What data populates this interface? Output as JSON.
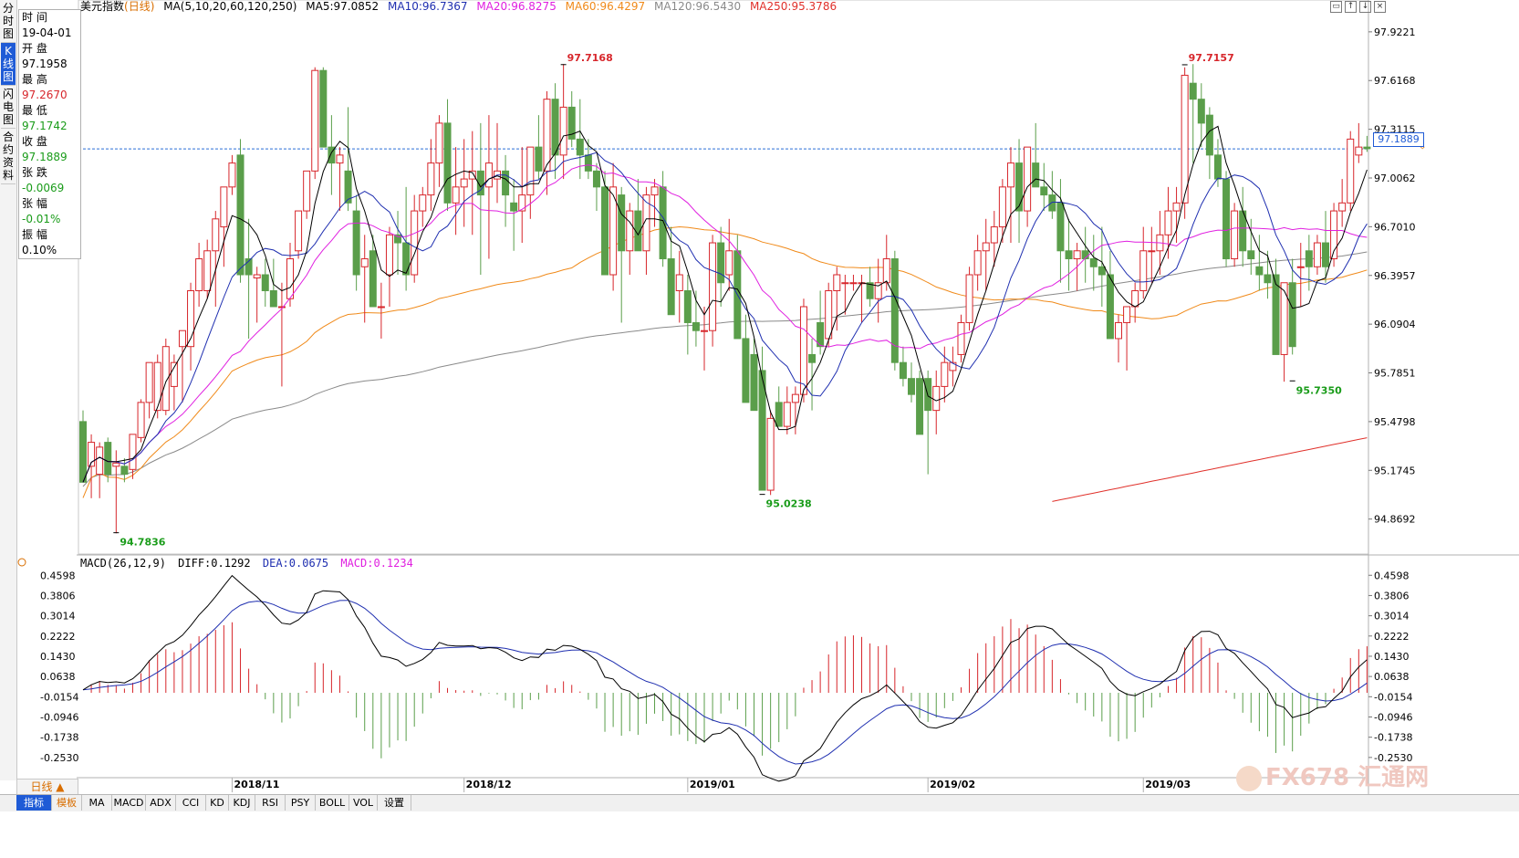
{
  "sidebar": {
    "tabs": [
      {
        "label": "分时图",
        "active": false
      },
      {
        "label": "K线图",
        "active": true
      },
      {
        "label": "闪电图",
        "active": false
      },
      {
        "label": "合约资料",
        "active": false
      }
    ]
  },
  "info_panel": {
    "time_label": "时 间",
    "time_value": "19-04-01",
    "open_label": "开 盘",
    "open_value": "97.1958",
    "high_label": "最 高",
    "high_value": "97.2670",
    "low_label": "最 低",
    "low_value": "97.1742",
    "close_label": "收 盘",
    "close_value": "97.1889",
    "change_label": "张 跌",
    "change_value": "-0.0069",
    "change_pct_label": "张 幅",
    "change_pct_value": "-0.01%",
    "amplitude_label": "振 幅",
    "amplitude_value": "0.10%"
  },
  "header": {
    "instrument": "美元指数",
    "period": "(日线)",
    "ma_params": "MA(5,10,20,60,120,250)",
    "ma5": "MA5:97.0852",
    "ma10": "MA10:96.7367",
    "ma20": "MA20:96.8275",
    "ma60": "MA60:96.4297",
    "ma120": "MA120:96.5430",
    "ma250": "MA250:95.3786"
  },
  "macd_header": {
    "params": "MACD(26,12,9)",
    "diff": "DIFF:0.1292",
    "dea": "DEA:0.0675",
    "macd": "MACD:0.1234"
  },
  "current_price_tag": "97.1889",
  "period_button": "日线 ▲",
  "bottom_tabs": [
    "指标",
    "模板",
    "MA",
    "MACD",
    "ADX",
    "CCI",
    "KD",
    "KDJ",
    "RSI",
    "PSY",
    "BOLL",
    "VOL",
    "设置"
  ],
  "watermark": "FX678 汇通网",
  "colors": {
    "up": "#d7262b",
    "down": "#5a9e4a",
    "ma5": "#000000",
    "ma10": "#1f2fb0",
    "ma20": "#e020e0",
    "ma60": "#f08a1a",
    "ma120": "#8a8a8a",
    "ma250": "#e0302a",
    "diff": "#000000",
    "dea": "#1f2fb0",
    "dashed_price": "#2a6fd6"
  },
  "chart_data": [
    {
      "type": "candlestick",
      "title": "美元指数(日线)",
      "y_ticks": [
        "97.9221",
        "97.6168",
        "97.3115",
        "97.0062",
        "96.7010",
        "96.3957",
        "96.0904",
        "95.7851",
        "95.4798",
        "95.1745",
        "94.8692"
      ],
      "ylim": [
        94.65,
        98.03
      ],
      "x_ticks": [
        "2018/11",
        "2018/12",
        "2019/01",
        "2019/02",
        "2019/03"
      ],
      "x_tick_index": [
        18,
        46,
        73,
        102,
        128
      ],
      "annotations": [
        {
          "index": 4,
          "value": "94.7836",
          "price": 94.7836
        },
        {
          "index": 58,
          "value": "97.7168",
          "price": 97.7168
        },
        {
          "index": 82,
          "value": "95.0238",
          "price": 95.0238
        },
        {
          "index": 133,
          "value": "97.7157",
          "price": 97.7157
        },
        {
          "index": 146,
          "value": "95.7350",
          "price": 95.735
        }
      ],
      "current_price_line": 97.1889,
      "candles_ohlc": [
        [
          95.48,
          95.55,
          95.1,
          95.1
        ],
        [
          95.2,
          95.4,
          95.0,
          95.35
        ],
        [
          95.15,
          95.35,
          95.0,
          95.32
        ],
        [
          95.35,
          95.38,
          95.1,
          95.15
        ],
        [
          95.2,
          95.3,
          94.78,
          95.22
        ],
        [
          95.2,
          95.25,
          95.1,
          95.15
        ],
        [
          95.18,
          95.4,
          95.12,
          95.4
        ],
        [
          95.38,
          95.62,
          95.35,
          95.6
        ],
        [
          95.6,
          95.85,
          95.5,
          95.85
        ],
        [
          95.55,
          95.9,
          95.5,
          95.85
        ],
        [
          95.55,
          96.0,
          95.52,
          95.95
        ],
        [
          95.7,
          95.9,
          95.55,
          95.85
        ],
        [
          95.95,
          96.05,
          95.6,
          96.05
        ],
        [
          95.95,
          96.35,
          95.8,
          96.3
        ],
        [
          96.3,
          96.6,
          96.2,
          96.5
        ],
        [
          96.3,
          96.62,
          96.25,
          96.55
        ],
        [
          96.55,
          96.8,
          96.2,
          96.75
        ],
        [
          96.7,
          96.95,
          96.45,
          96.95
        ],
        [
          96.95,
          97.15,
          96.9,
          97.1
        ],
        [
          97.15,
          97.25,
          96.35,
          96.4
        ],
        [
          96.5,
          96.75,
          96.0,
          96.4
        ],
        [
          96.38,
          96.45,
          96.1,
          96.4
        ],
        [
          96.4,
          96.5,
          96.2,
          96.3
        ],
        [
          96.3,
          96.5,
          96.2,
          96.2
        ],
        [
          96.2,
          96.35,
          95.7,
          96.2
        ],
        [
          96.25,
          96.6,
          96.2,
          96.5
        ],
        [
          96.55,
          96.8,
          96.5,
          96.8
        ],
        [
          96.8,
          97.05,
          96.75,
          97.05
        ],
        [
          97.05,
          97.7,
          97.0,
          97.68
        ],
        [
          97.68,
          97.7,
          97.2,
          97.2
        ],
        [
          97.2,
          97.4,
          96.9,
          97.1
        ],
        [
          97.1,
          97.2,
          96.8,
          97.15
        ],
        [
          97.05,
          97.45,
          96.8,
          96.85
        ],
        [
          96.8,
          96.9,
          96.3,
          96.4
        ],
        [
          96.45,
          96.65,
          96.1,
          96.5
        ],
        [
          96.55,
          96.65,
          96.2,
          96.2
        ],
        [
          96.2,
          96.35,
          96.0,
          96.2
        ],
        [
          96.4,
          96.7,
          96.2,
          96.65
        ],
        [
          96.65,
          96.8,
          96.4,
          96.6
        ],
        [
          96.6,
          96.95,
          96.3,
          96.4
        ],
        [
          96.4,
          96.9,
          96.35,
          96.8
        ],
        [
          96.8,
          96.95,
          96.7,
          96.9
        ],
        [
          96.9,
          97.25,
          96.8,
          97.1
        ],
        [
          97.1,
          97.4,
          96.95,
          97.35
        ],
        [
          97.35,
          97.5,
          96.8,
          96.85
        ],
        [
          96.85,
          97.2,
          96.65,
          96.95
        ],
        [
          96.95,
          97.25,
          96.7,
          97.0
        ],
        [
          97.0,
          97.3,
          96.65,
          97.05
        ],
        [
          97.05,
          97.35,
          96.4,
          96.9
        ],
        [
          96.95,
          97.4,
          96.5,
          97.1
        ],
        [
          97.0,
          97.35,
          96.85,
          97.05
        ],
        [
          97.05,
          97.15,
          96.7,
          96.9
        ],
        [
          96.85,
          97.0,
          96.55,
          96.8
        ],
        [
          96.8,
          97.2,
          96.6,
          96.9
        ],
        [
          96.9,
          97.2,
          96.75,
          97.2
        ],
        [
          97.2,
          97.4,
          97.0,
          97.05
        ],
        [
          97.05,
          97.55,
          96.9,
          97.5
        ],
        [
          97.5,
          97.6,
          97.0,
          97.15
        ],
        [
          97.15,
          97.72,
          97.0,
          97.45
        ],
        [
          97.45,
          97.55,
          97.2,
          97.25
        ],
        [
          97.25,
          97.5,
          97.0,
          97.15
        ],
        [
          97.15,
          97.25,
          97.0,
          97.05
        ],
        [
          97.05,
          97.1,
          96.8,
          96.95
        ],
        [
          96.95,
          97.05,
          96.45,
          96.4
        ],
        [
          96.4,
          97.1,
          96.3,
          96.95
        ],
        [
          96.9,
          96.95,
          96.1,
          96.55
        ],
        [
          96.55,
          96.85,
          96.4,
          96.8
        ],
        [
          96.8,
          97.0,
          96.55,
          96.55
        ],
        [
          96.55,
          96.95,
          96.4,
          96.9
        ],
        [
          96.9,
          97.0,
          96.7,
          96.95
        ],
        [
          96.95,
          97.05,
          96.45,
          96.5
        ],
        [
          96.5,
          96.7,
          96.15,
          96.15
        ],
        [
          96.3,
          96.55,
          96.1,
          96.4
        ],
        [
          96.3,
          96.4,
          95.9,
          96.1
        ],
        [
          96.1,
          96.3,
          95.95,
          96.05
        ],
        [
          96.05,
          96.2,
          95.8,
          96.05
        ],
        [
          96.05,
          96.65,
          95.95,
          96.6
        ],
        [
          96.6,
          96.7,
          96.2,
          96.35
        ],
        [
          96.4,
          96.75,
          96.3,
          96.55
        ],
        [
          96.55,
          96.65,
          96.05,
          96.0
        ],
        [
          96.0,
          96.15,
          95.6,
          95.6
        ],
        [
          95.9,
          96.0,
          95.55,
          95.55
        ],
        [
          95.8,
          95.95,
          95.05,
          95.05
        ],
        [
          95.05,
          95.55,
          95.02,
          95.5
        ],
        [
          95.6,
          95.7,
          95.45,
          95.45
        ],
        [
          95.45,
          95.7,
          95.4,
          95.6
        ],
        [
          95.6,
          95.7,
          95.4,
          95.65
        ],
        [
          95.65,
          96.25,
          95.6,
          96.2
        ],
        [
          95.9,
          96.0,
          95.55,
          95.85
        ],
        [
          96.1,
          96.3,
          95.9,
          95.95
        ],
        [
          96.0,
          96.35,
          95.95,
          96.3
        ],
        [
          96.3,
          96.45,
          96.05,
          96.4
        ],
        [
          96.35,
          96.4,
          96.15,
          96.35
        ],
        [
          96.35,
          96.4,
          96.3,
          96.35
        ],
        [
          96.35,
          96.4,
          96.1,
          96.35
        ],
        [
          96.35,
          96.45,
          96.2,
          96.25
        ],
        [
          96.25,
          96.5,
          96.1,
          96.35
        ],
        [
          96.35,
          96.65,
          96.3,
          96.5
        ],
        [
          96.5,
          96.55,
          95.8,
          95.85
        ],
        [
          95.85,
          95.95,
          95.7,
          95.75
        ],
        [
          95.75,
          95.85,
          95.6,
          95.65
        ],
        [
          95.75,
          95.8,
          95.4,
          95.4
        ],
        [
          95.75,
          95.8,
          95.15,
          95.55
        ],
        [
          95.55,
          95.8,
          95.4,
          95.7
        ],
        [
          95.7,
          95.95,
          95.6,
          95.85
        ],
        [
          95.8,
          95.95,
          95.7,
          95.85
        ],
        [
          95.9,
          96.15,
          95.85,
          96.1
        ],
        [
          96.1,
          96.45,
          96.05,
          96.4
        ],
        [
          96.4,
          96.65,
          96.3,
          96.55
        ],
        [
          96.55,
          96.75,
          96.3,
          96.6
        ],
        [
          96.6,
          96.8,
          96.45,
          96.7
        ],
        [
          96.7,
          97.0,
          96.6,
          96.95
        ],
        [
          96.95,
          97.2,
          96.6,
          97.1
        ],
        [
          97.1,
          97.25,
          96.6,
          96.8
        ],
        [
          96.8,
          97.2,
          96.7,
          97.2
        ],
        [
          97.1,
          97.35,
          96.95,
          96.95
        ],
        [
          96.95,
          97.1,
          96.8,
          96.9
        ],
        [
          96.9,
          97.05,
          96.75,
          96.8
        ],
        [
          96.85,
          97.0,
          96.35,
          96.55
        ],
        [
          96.55,
          96.75,
          96.3,
          96.5
        ],
        [
          96.5,
          96.6,
          96.3,
          96.55
        ],
        [
          96.55,
          96.7,
          96.35,
          96.5
        ],
        [
          96.5,
          96.65,
          96.3,
          96.45
        ],
        [
          96.45,
          96.7,
          96.2,
          96.4
        ],
        [
          96.4,
          96.55,
          96.0,
          96.0
        ],
        [
          96.0,
          96.15,
          95.85,
          96.1
        ],
        [
          96.1,
          96.2,
          95.8,
          96.2
        ],
        [
          96.2,
          96.35,
          96.1,
          96.3
        ],
        [
          96.3,
          96.7,
          96.25,
          96.55
        ],
        [
          96.55,
          96.7,
          96.35,
          96.55
        ],
        [
          96.55,
          96.8,
          96.4,
          96.65
        ],
        [
          96.65,
          96.95,
          96.5,
          96.8
        ],
        [
          96.8,
          96.95,
          96.6,
          96.85
        ],
        [
          96.85,
          97.7,
          96.75,
          97.65
        ],
        [
          97.6,
          97.72,
          97.1,
          97.5
        ],
        [
          97.5,
          97.6,
          97.2,
          97.35
        ],
        [
          97.4,
          97.45,
          97.0,
          97.15
        ],
        [
          97.15,
          97.25,
          96.95,
          97.0
        ],
        [
          97.0,
          97.05,
          96.45,
          96.5
        ],
        [
          96.5,
          96.85,
          96.45,
          96.8
        ],
        [
          96.8,
          96.95,
          96.45,
          96.55
        ],
        [
          96.55,
          96.75,
          96.4,
          96.5
        ],
        [
          96.45,
          96.65,
          96.3,
          96.4
        ],
        [
          96.4,
          96.55,
          96.25,
          96.35
        ],
        [
          96.4,
          96.5,
          95.9,
          95.9
        ],
        [
          95.9,
          96.35,
          95.73,
          96.35
        ],
        [
          96.35,
          96.5,
          95.9,
          95.95
        ],
        [
          96.45,
          96.6,
          96.2,
          96.45
        ],
        [
          96.55,
          96.65,
          96.3,
          96.45
        ],
        [
          96.45,
          96.65,
          96.4,
          96.6
        ],
        [
          96.6,
          96.8,
          96.35,
          96.45
        ],
        [
          96.5,
          96.85,
          96.45,
          96.8
        ],
        [
          96.8,
          97.0,
          96.7,
          96.85
        ],
        [
          96.85,
          97.3,
          96.8,
          97.25
        ],
        [
          97.15,
          97.35,
          97.1,
          97.2
        ],
        [
          97.2,
          97.27,
          97.17,
          97.19
        ]
      ]
    },
    {
      "type": "macd",
      "title": "MACD(26,12,9)",
      "y_ticks": [
        "0.4598",
        "0.3806",
        "0.3014",
        "0.2222",
        "0.1430",
        "0.0638",
        "-0.0154",
        "-0.0946",
        "-0.1738",
        "-0.2530"
      ],
      "ylim": [
        -0.325,
        0.475
      ]
    }
  ]
}
